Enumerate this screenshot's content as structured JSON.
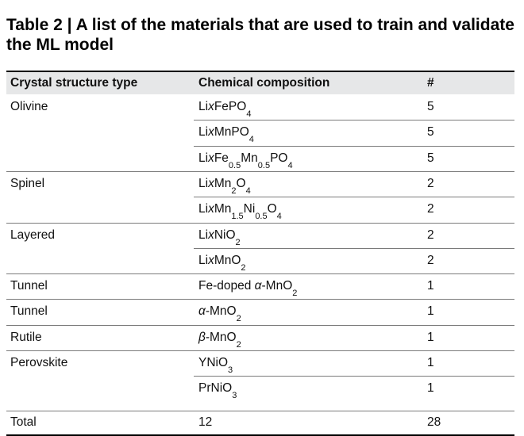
{
  "title": "Table 2 | A list of the materials that are used to train and validate the ML model",
  "headers": [
    "Crystal structure type",
    "Chemical composition",
    "#"
  ],
  "groups": [
    {
      "type": "Olivine",
      "rows": [
        {
          "formula": [
            [
              "Li",
              ""
            ],
            [
              "x",
              "i"
            ],
            [
              "FePO",
              ""
            ],
            [
              "4",
              "s"
            ]
          ],
          "count": "5"
        },
        {
          "formula": [
            [
              "Li",
              ""
            ],
            [
              "x",
              "i"
            ],
            [
              "MnPO",
              ""
            ],
            [
              "4",
              "s"
            ]
          ],
          "count": "5"
        },
        {
          "formula": [
            [
              "Li",
              ""
            ],
            [
              "x",
              "i"
            ],
            [
              "Fe",
              ""
            ],
            [
              "0.5",
              "s"
            ],
            [
              "Mn",
              ""
            ],
            [
              "0.5",
              "s"
            ],
            [
              "PO",
              ""
            ],
            [
              "4",
              "s"
            ]
          ],
          "count": "5"
        }
      ]
    },
    {
      "type": "Spinel",
      "rows": [
        {
          "formula": [
            [
              "Li",
              ""
            ],
            [
              "x",
              "i"
            ],
            [
              "Mn",
              ""
            ],
            [
              "2",
              "s"
            ],
            [
              "O",
              ""
            ],
            [
              "4",
              "s"
            ]
          ],
          "count": "2"
        },
        {
          "formula": [
            [
              "Li",
              ""
            ],
            [
              "x",
              "i"
            ],
            [
              "Mn",
              ""
            ],
            [
              "1.5",
              "s"
            ],
            [
              "Ni",
              ""
            ],
            [
              "0.5",
              "s"
            ],
            [
              "O",
              ""
            ],
            [
              "4",
              "s"
            ]
          ],
          "count": "2"
        }
      ]
    },
    {
      "type": "Layered",
      "rows": [
        {
          "formula": [
            [
              "Li",
              ""
            ],
            [
              "x",
              "i"
            ],
            [
              "NiO",
              ""
            ],
            [
              "2",
              "s"
            ]
          ],
          "count": "2"
        },
        {
          "formula": [
            [
              "Li",
              ""
            ],
            [
              "x",
              "i"
            ],
            [
              "MnO",
              ""
            ],
            [
              "2",
              "s"
            ]
          ],
          "count": "2"
        }
      ]
    },
    {
      "type": "Tunnel",
      "rows": [
        {
          "formula": [
            [
              "Fe-doped ",
              ""
            ],
            [
              "α",
              "i"
            ],
            [
              "-MnO",
              ""
            ],
            [
              "2",
              "s"
            ]
          ],
          "count": "1"
        }
      ]
    },
    {
      "type": "Tunnel",
      "rows": [
        {
          "formula": [
            [
              "α",
              "i"
            ],
            [
              "-MnO",
              ""
            ],
            [
              "2",
              "s"
            ]
          ],
          "count": "1"
        }
      ]
    },
    {
      "type": "Rutile",
      "rows": [
        {
          "formula": [
            [
              "β",
              "i"
            ],
            [
              "-MnO",
              ""
            ],
            [
              "2",
              "s"
            ]
          ],
          "count": "1"
        }
      ]
    },
    {
      "type": "Perovskite",
      "rows": [
        {
          "formula": [
            [
              "YNiO",
              ""
            ],
            [
              "3",
              "s"
            ]
          ],
          "count": "1"
        },
        {
          "formula": [
            [
              "PrNiO",
              ""
            ],
            [
              "3",
              "s"
            ]
          ],
          "count": "1"
        }
      ]
    }
  ],
  "total": {
    "label": "Total",
    "compositions": "12",
    "count": "28"
  }
}
